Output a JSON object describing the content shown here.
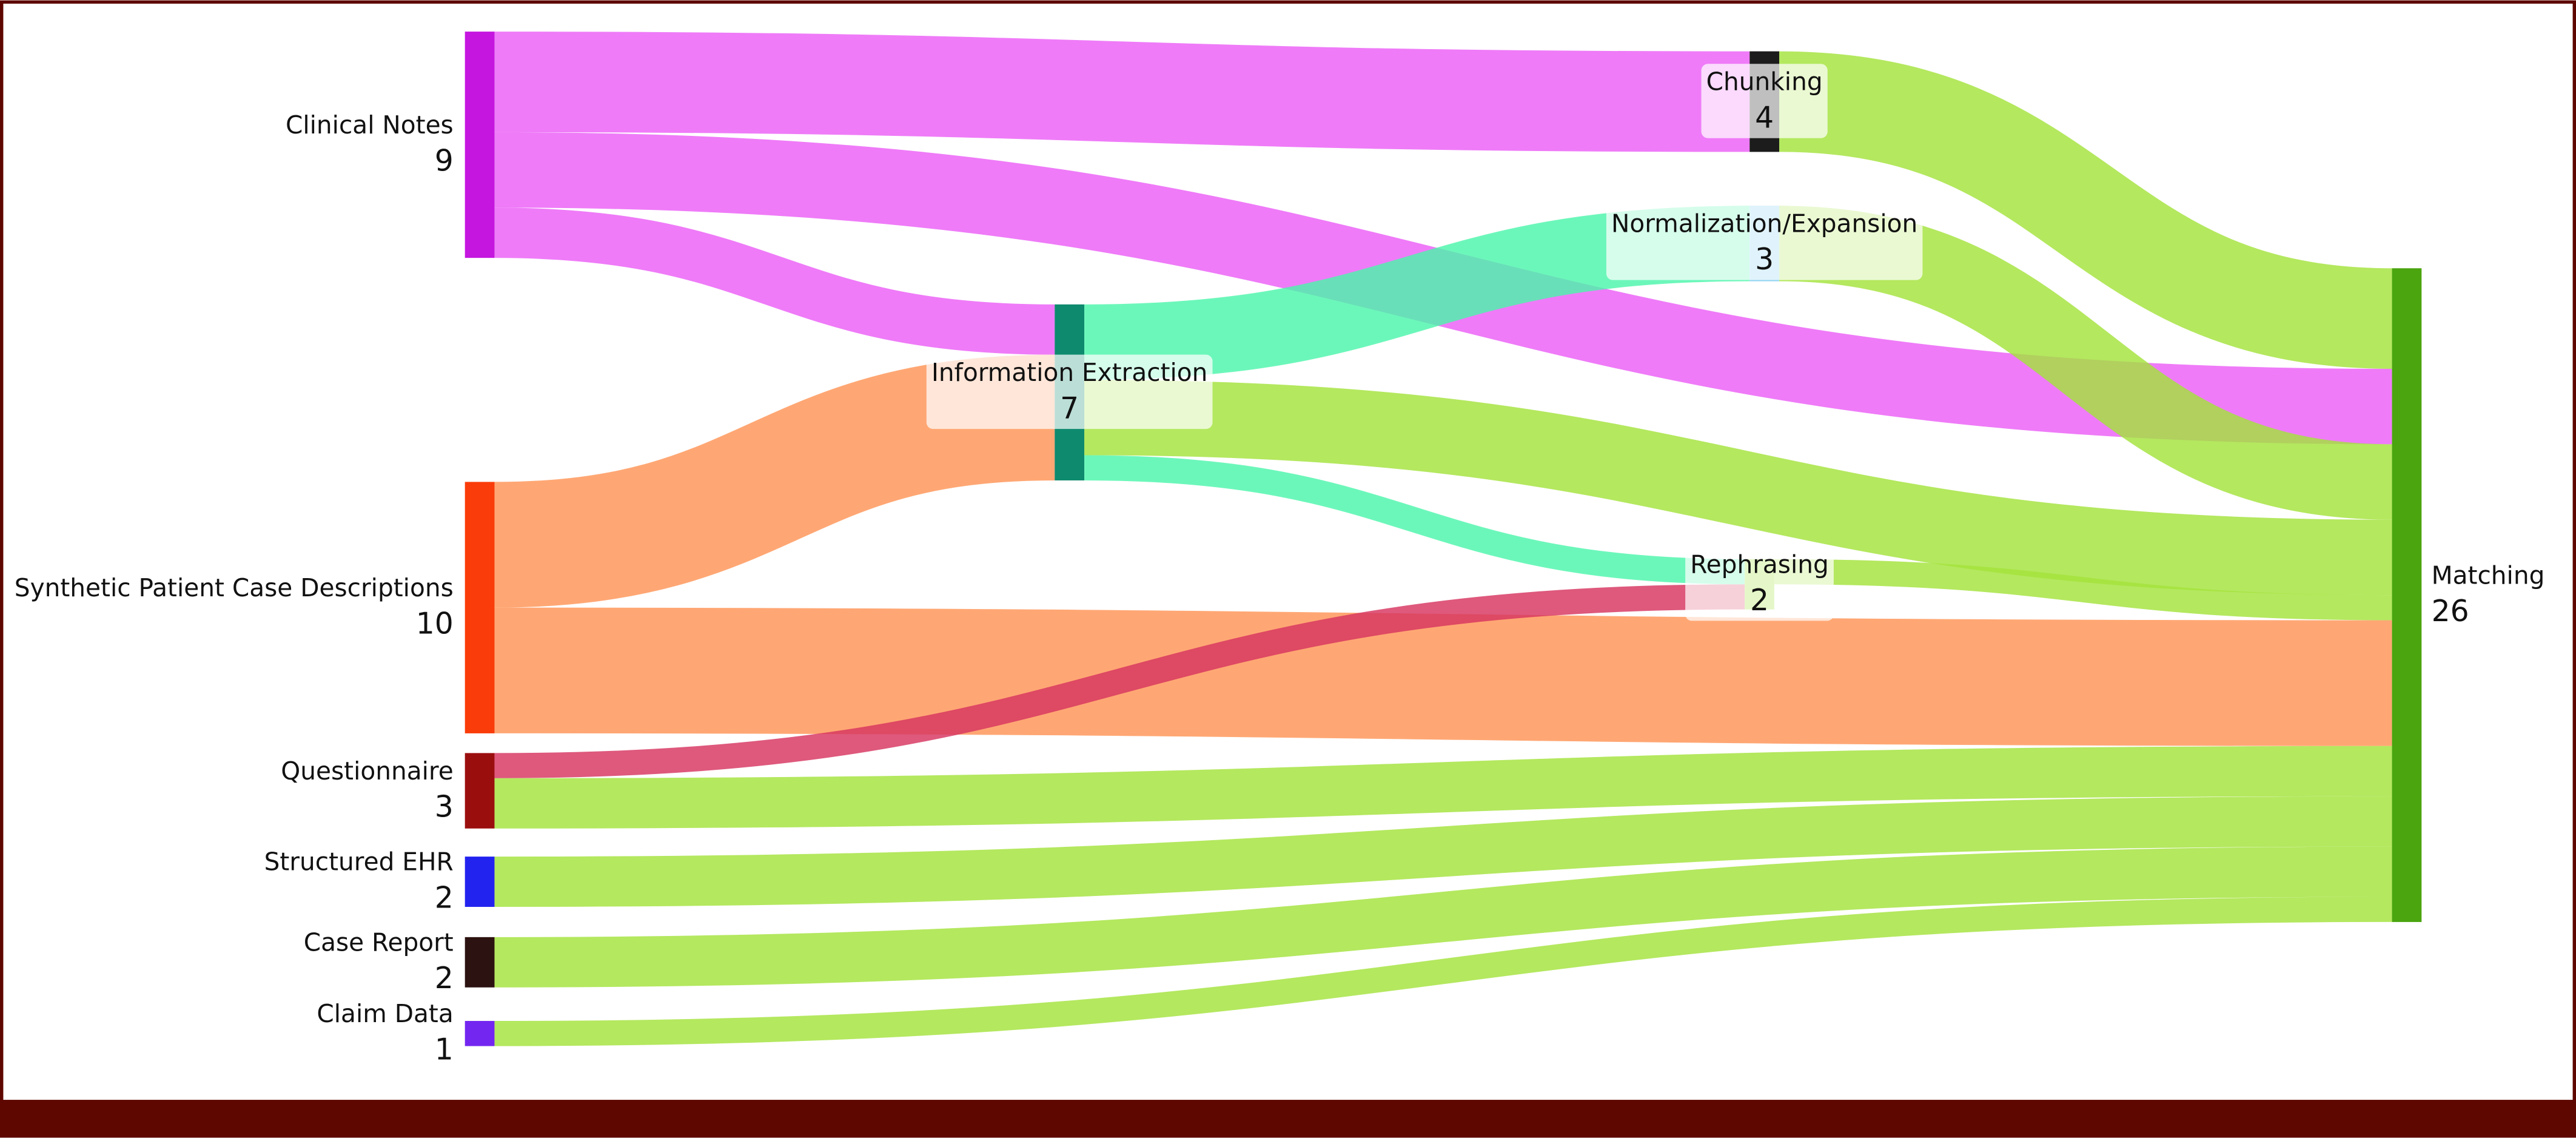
{
  "chart_data": {
    "type": "sankey",
    "nodes": [
      {
        "name": "Clinical Notes",
        "value": 9,
        "color": "#c516e0"
      },
      {
        "name": "Synthetic Patient Case Descriptions",
        "value": 10,
        "color": "#fa3c0a"
      },
      {
        "name": "Questionnaire",
        "value": 3,
        "color": "#9b0e0e"
      },
      {
        "name": "Structured EHR",
        "value": 2,
        "color": "#2323f0"
      },
      {
        "name": "Case Report",
        "value": 2,
        "color": "#2c1210"
      },
      {
        "name": "Claim Data",
        "value": 1,
        "color": "#7326f0"
      },
      {
        "name": "Information Extraction",
        "value": 7,
        "color": "#0e8a6e"
      },
      {
        "name": "Chunking",
        "value": 4,
        "color": "#1c1c1c"
      },
      {
        "name": "Normalization/Expansion",
        "value": 3,
        "color": "#8fd3f2"
      },
      {
        "name": "Rephrasing",
        "value": 2,
        "color": "#a3e33c"
      },
      {
        "name": "Matching",
        "value": 26,
        "color": "#4aa50f"
      }
    ],
    "links": [
      {
        "source": "Clinical Notes",
        "target": "Chunking",
        "value": 4,
        "color": "#ec5ef6"
      },
      {
        "source": "Clinical Notes",
        "target": "Matching",
        "value": 3,
        "color": "#ec5ef6"
      },
      {
        "source": "Clinical Notes",
        "target": "Information Extraction",
        "value": 2,
        "color": "#ec5ef6"
      },
      {
        "source": "Synthetic Patient Case Descriptions",
        "target": "Information Extraction",
        "value": 5,
        "color": "#ff9455"
      },
      {
        "source": "Synthetic Patient Case Descriptions",
        "target": "Matching",
        "value": 5,
        "color": "#ff9455"
      },
      {
        "source": "Questionnaire",
        "target": "Rephrasing",
        "value": 1,
        "color": "#d7345f"
      },
      {
        "source": "Questionnaire",
        "target": "Matching",
        "value": 2,
        "color": "#a3e33c"
      },
      {
        "source": "Structured EHR",
        "target": "Matching",
        "value": 2,
        "color": "#a3e33c"
      },
      {
        "source": "Case Report",
        "target": "Matching",
        "value": 2,
        "color": "#a3e33c"
      },
      {
        "source": "Claim Data",
        "target": "Matching",
        "value": 1,
        "color": "#a3e33c"
      },
      {
        "source": "Information Extraction",
        "target": "Normalization/Expansion",
        "value": 3,
        "color": "#4cf5ab"
      },
      {
        "source": "Information Extraction",
        "target": "Matching",
        "value": 3,
        "color": "#a3e33c"
      },
      {
        "source": "Information Extraction",
        "target": "Rephrasing",
        "value": 1,
        "color": "#4cf5ab"
      },
      {
        "source": "Chunking",
        "target": "Matching",
        "value": 4,
        "color": "#a3e33c"
      },
      {
        "source": "Normalization/Expansion",
        "target": "Matching",
        "value": 3,
        "color": "#a3e33c"
      },
      {
        "source": "Rephrasing",
        "target": "Matching",
        "value": 1,
        "color": "#a3e33c"
      }
    ]
  }
}
